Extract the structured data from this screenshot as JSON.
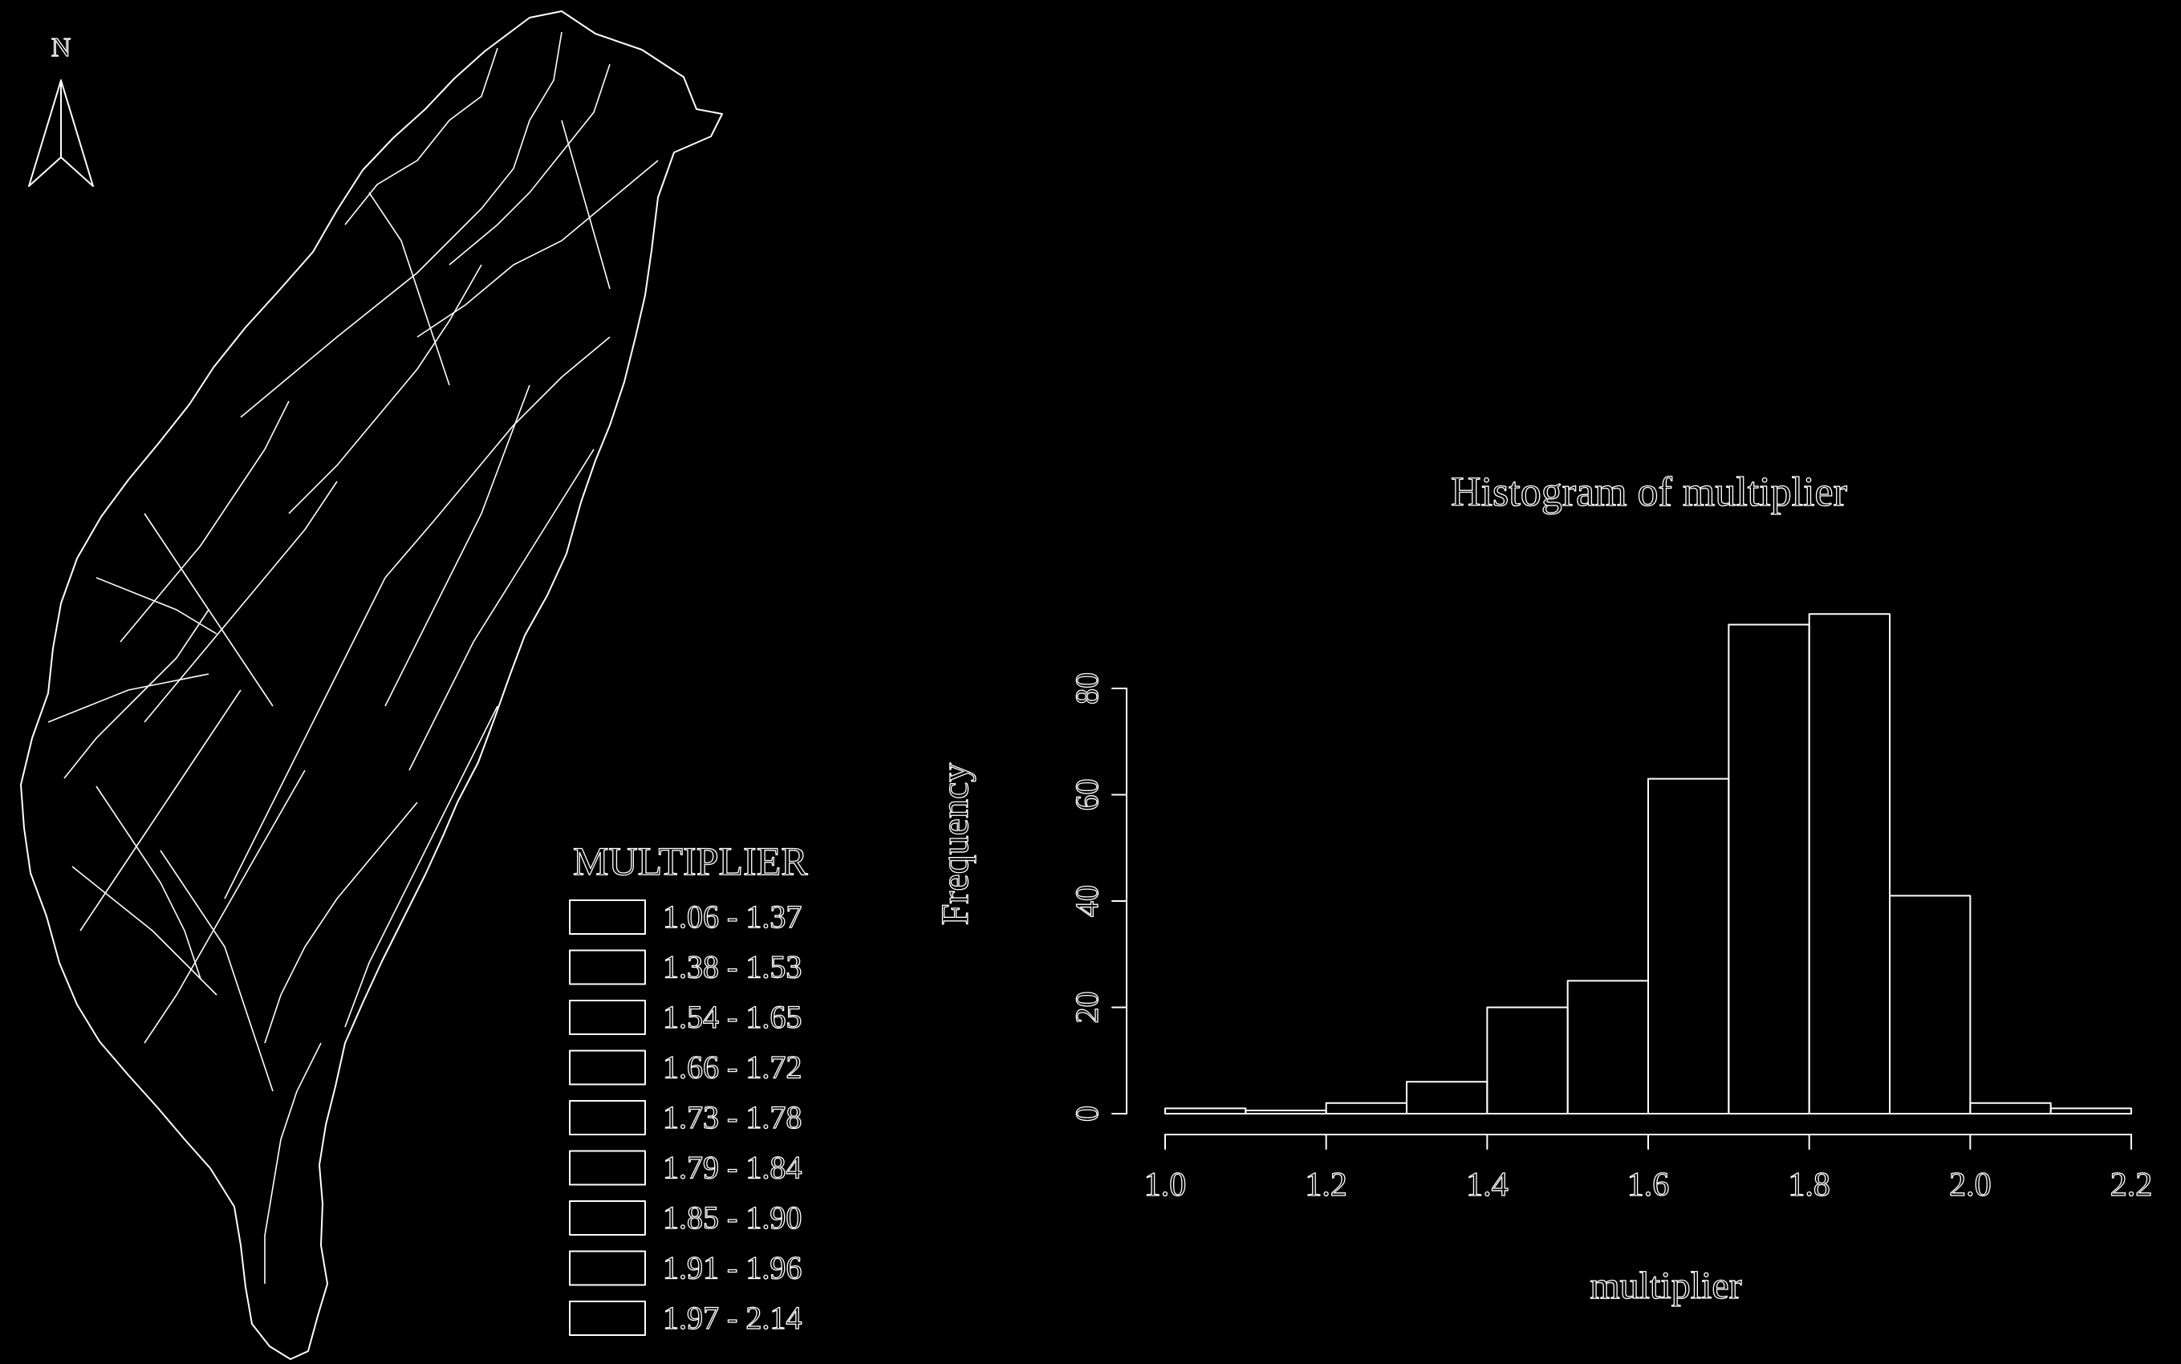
{
  "map": {
    "north_label": "N",
    "legend": {
      "title": "MULTIPLIER",
      "classes": [
        "1.06 - 1.37",
        "1.38 - 1.53",
        "1.54 - 1.65",
        "1.66 - 1.72",
        "1.73 - 1.78",
        "1.79 - 1.84",
        "1.85 - 1.90",
        "1.91 - 1.96",
        "1.97 - 2.14"
      ]
    },
    "colors": {
      "background": "#000000",
      "stroke": "#ffffff"
    }
  },
  "chart_data": {
    "type": "bar",
    "title": "Histogram of multiplier",
    "xlabel": "multiplier",
    "ylabel": "Frequency",
    "bin_edges": [
      1.0,
      1.1,
      1.2,
      1.3,
      1.4,
      1.5,
      1.6,
      1.7,
      1.8,
      1.9,
      2.0,
      2.1,
      2.2
    ],
    "values": [
      1,
      0,
      2,
      6,
      20,
      25,
      63,
      92,
      94,
      41,
      2,
      1
    ],
    "xlim": [
      1.0,
      2.2
    ],
    "ylim": [
      0,
      80
    ],
    "xticks": [
      "1.0",
      "1.2",
      "1.4",
      "1.6",
      "1.8",
      "2.0",
      "2.2"
    ],
    "yticks": [
      "0",
      "20",
      "40",
      "60",
      "80"
    ],
    "grid": false,
    "legend": "none"
  }
}
